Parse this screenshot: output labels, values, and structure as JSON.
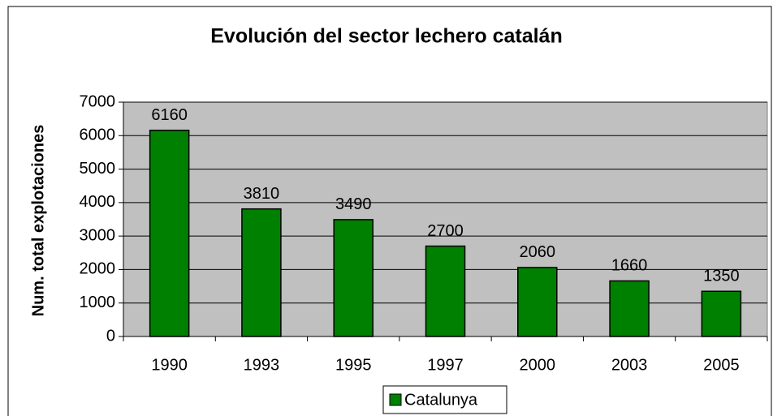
{
  "chart_data": {
    "type": "bar",
    "title": "Evolución del sector lechero catalán",
    "y_label": "Num. total explotaciones",
    "categories": [
      "1990",
      "1993",
      "1995",
      "1997",
      "2000",
      "2003",
      "2005"
    ],
    "series": [
      {
        "name": "Catalunya",
        "color": "#008000",
        "values": [
          6160,
          3810,
          3490,
          2700,
          2060,
          1660,
          1350
        ]
      }
    ],
    "ylim": [
      0,
      7000
    ],
    "yticks": [
      0,
      1000,
      2000,
      3000,
      4000,
      5000,
      6000,
      7000
    ],
    "grid": true,
    "legend": "bottom"
  }
}
